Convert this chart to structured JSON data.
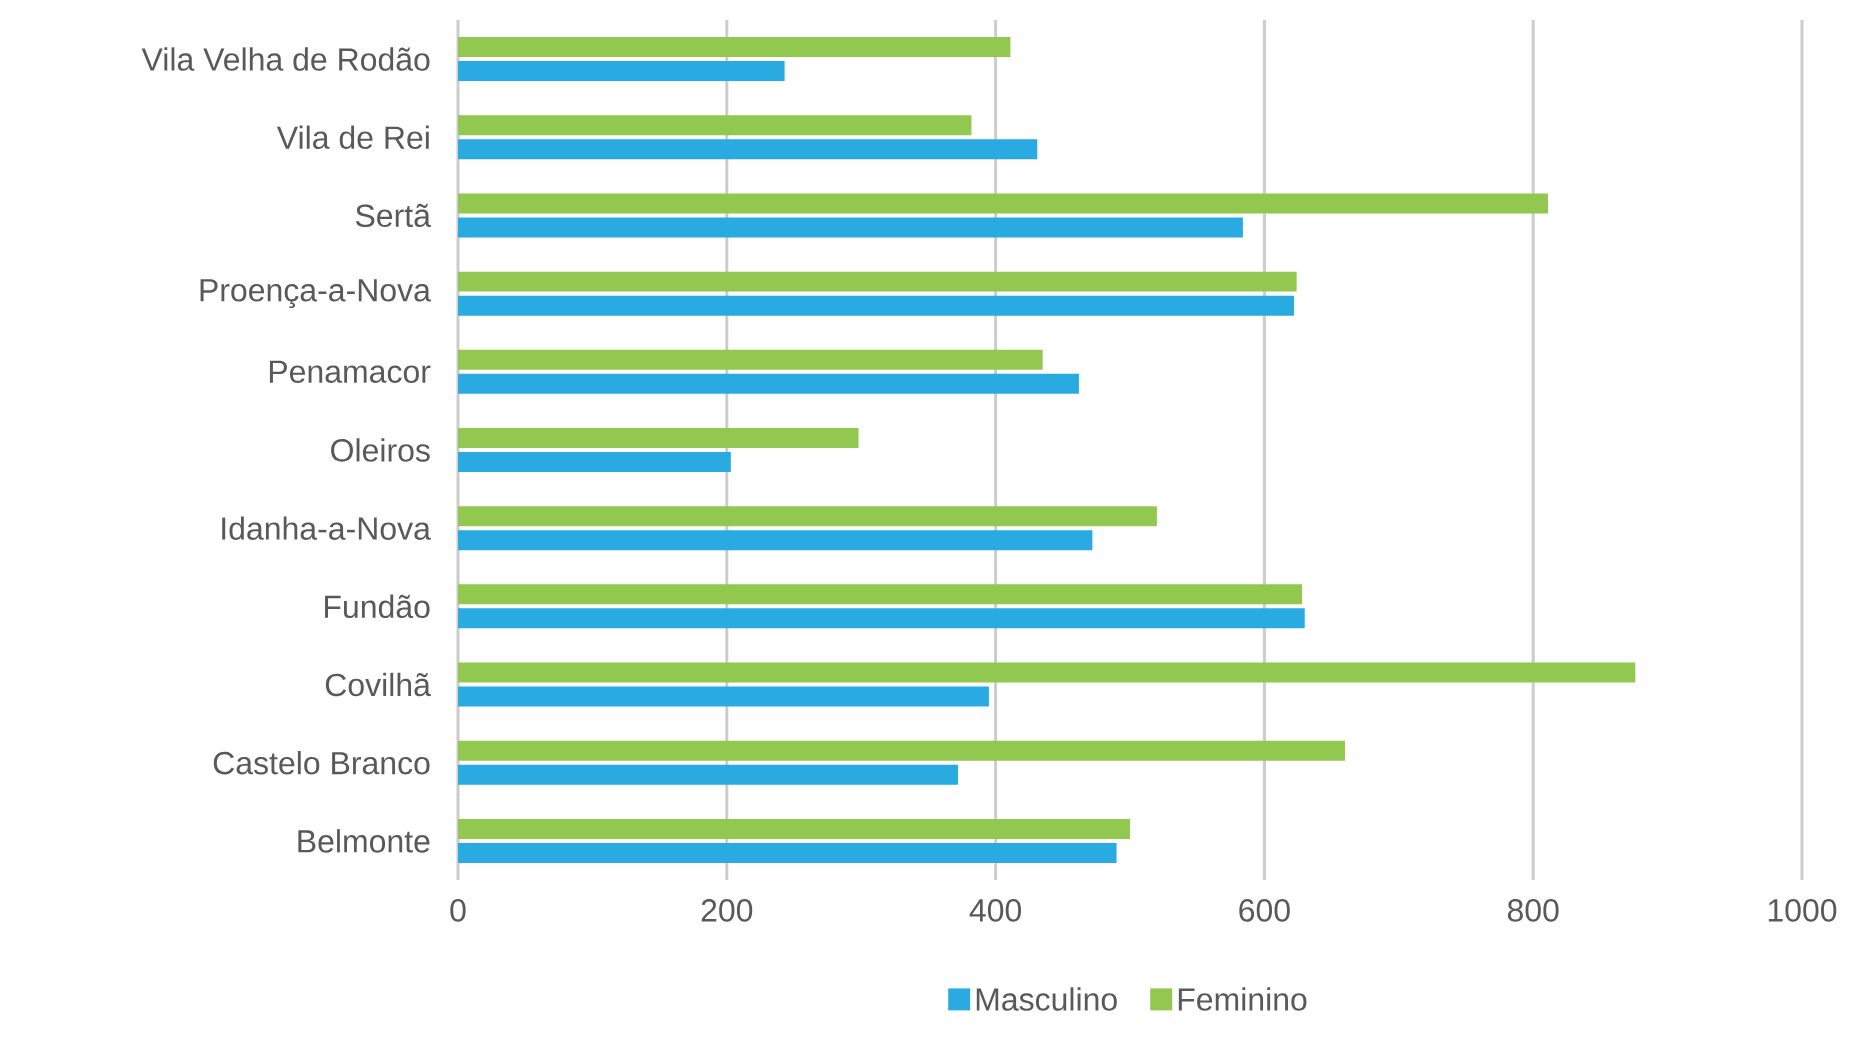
{
  "chart_data": {
    "type": "bar",
    "orientation": "horizontal",
    "categories": [
      "Vila Velha de Rodão",
      "Vila de Rei",
      "Sertã",
      "Proença-a-Nova",
      "Penamacor",
      "Oleiros",
      "Idanha-a-Nova",
      "Fundão",
      "Covilhã",
      "Castelo Branco",
      "Belmonte"
    ],
    "series": [
      {
        "name": "Masculino",
        "color": "#29abe2",
        "values": [
          243,
          431,
          584,
          622,
          462,
          203,
          472,
          630,
          395,
          372,
          490
        ]
      },
      {
        "name": "Feminino",
        "color": "#92c850",
        "values": [
          411,
          382,
          811,
          624,
          435,
          298,
          520,
          628,
          876,
          660,
          500
        ]
      }
    ],
    "xlim": [
      0,
      1000
    ],
    "xticks": [
      0,
      200,
      400,
      600,
      800,
      1000
    ],
    "grid": "x",
    "legend": "bottom"
  }
}
